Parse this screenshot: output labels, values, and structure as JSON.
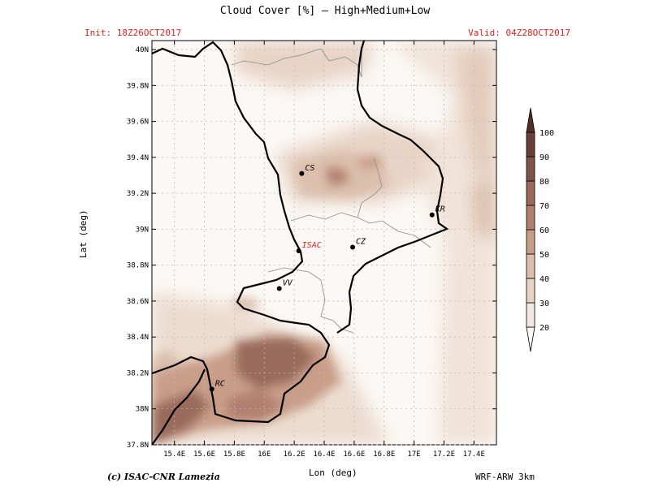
{
  "title": "Cloud Cover [%] — High+Medium+Low",
  "init": "Init: 18Z26OCT2017",
  "valid": "Valid: 04Z28OCT2017",
  "xaxis_title": "Lon (deg)",
  "yaxis_title": "Lat (deg)",
  "credit": "(c) ISAC-CNR Lamezia",
  "model": "WRF-ARW 3km",
  "lon_ticks": [
    "15.4E",
    "15.6E",
    "15.8E",
    "16E",
    "16.2E",
    "16.4E",
    "16.6E",
    "16.8E",
    "17E",
    "17.2E",
    "17.4E"
  ],
  "lat_ticks": [
    "37.8N",
    "38N",
    "38.2N",
    "38.4N",
    "38.6N",
    "38.8N",
    "39N",
    "39.2N",
    "39.4N",
    "39.6N",
    "39.8N",
    "40N"
  ],
  "colorbar": {
    "levels": [
      "20",
      "30",
      "40",
      "50",
      "60",
      "70",
      "80",
      "90",
      "100"
    ],
    "colors": [
      "#fbf8f5",
      "#f3e8df",
      "#e8d4c6",
      "#dcbfac",
      "#c99e89",
      "#b28070",
      "#9a6a5c",
      "#80524a",
      "#6a3f38",
      "#523029"
    ]
  },
  "cities": [
    {
      "id": "cs",
      "label": "CS",
      "lon": 16.25,
      "lat": 39.31
    },
    {
      "id": "kr",
      "label": "KR",
      "lon": 17.12,
      "lat": 39.08
    },
    {
      "id": "isac",
      "label": "ISAC",
      "lon": 16.23,
      "lat": 38.88,
      "color": "#e02020"
    },
    {
      "id": "cz",
      "label": "CZ",
      "lon": 16.59,
      "lat": 38.9
    },
    {
      "id": "vv",
      "label": "VV",
      "lon": 16.1,
      "lat": 38.67
    },
    {
      "id": "rc",
      "label": "RC",
      "lon": 15.65,
      "lat": 38.11
    }
  ]
}
